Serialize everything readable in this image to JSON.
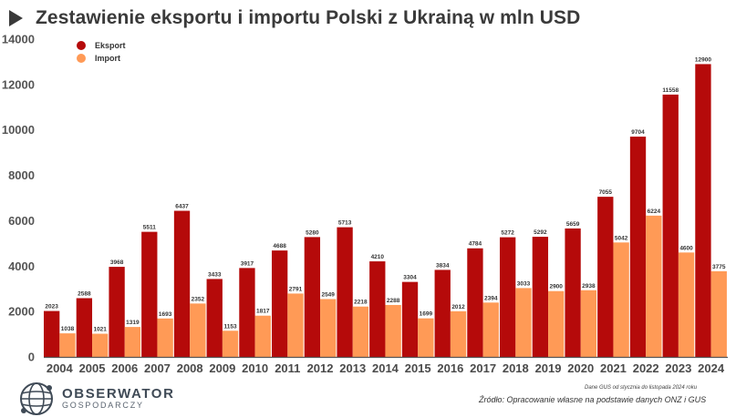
{
  "header": {
    "title": "Zestawienie eksportu i importu Polski z Ukrainą w mln USD"
  },
  "chart_data": {
    "type": "bar",
    "title": "Zestawienie eksportu i importu Polski z Ukrainą w mln USD",
    "categories": [
      "2004",
      "2005",
      "2006",
      "2007",
      "2008",
      "2009",
      "2010",
      "2011",
      "2012",
      "2013",
      "2014",
      "2015",
      "2016",
      "2017",
      "2018",
      "2019",
      "2020",
      "2021",
      "2022",
      "2023",
      "2024"
    ],
    "series": [
      {
        "name": "Eksport",
        "color": "#b50a0a",
        "values": [
          2023,
          2588,
          3968,
          5511,
          6437,
          3433,
          3917,
          4688,
          5280,
          5713,
          4210,
          3304,
          3834,
          4784,
          5272,
          5292,
          5659,
          7055,
          9704,
          11558,
          12900
        ]
      },
      {
        "name": "Import",
        "color": "#ff9a56",
        "values": [
          1038,
          1021,
          1319,
          1693,
          2352,
          1153,
          1817,
          2791,
          2549,
          2218,
          2288,
          1699,
          2012,
          2394,
          3033,
          2900,
          2938,
          5042,
          6224,
          4600,
          3775
        ]
      }
    ],
    "ylim": [
      0,
      14000
    ],
    "yticks": [
      0,
      2000,
      4000,
      6000,
      8000,
      10000,
      12000,
      14000
    ],
    "grid": false,
    "legend_position": "top-left",
    "data_labels": true
  },
  "footer": {
    "note": "Dane GUS od stycznia do listopada 2024 roku",
    "source": "Źródło: Opracowanie własne na podstawie danych ONZ i GUS"
  },
  "logo": {
    "line1": "OBSERWATOR",
    "line2": "GOSPODARCZY",
    "icon": "globe-icon"
  }
}
